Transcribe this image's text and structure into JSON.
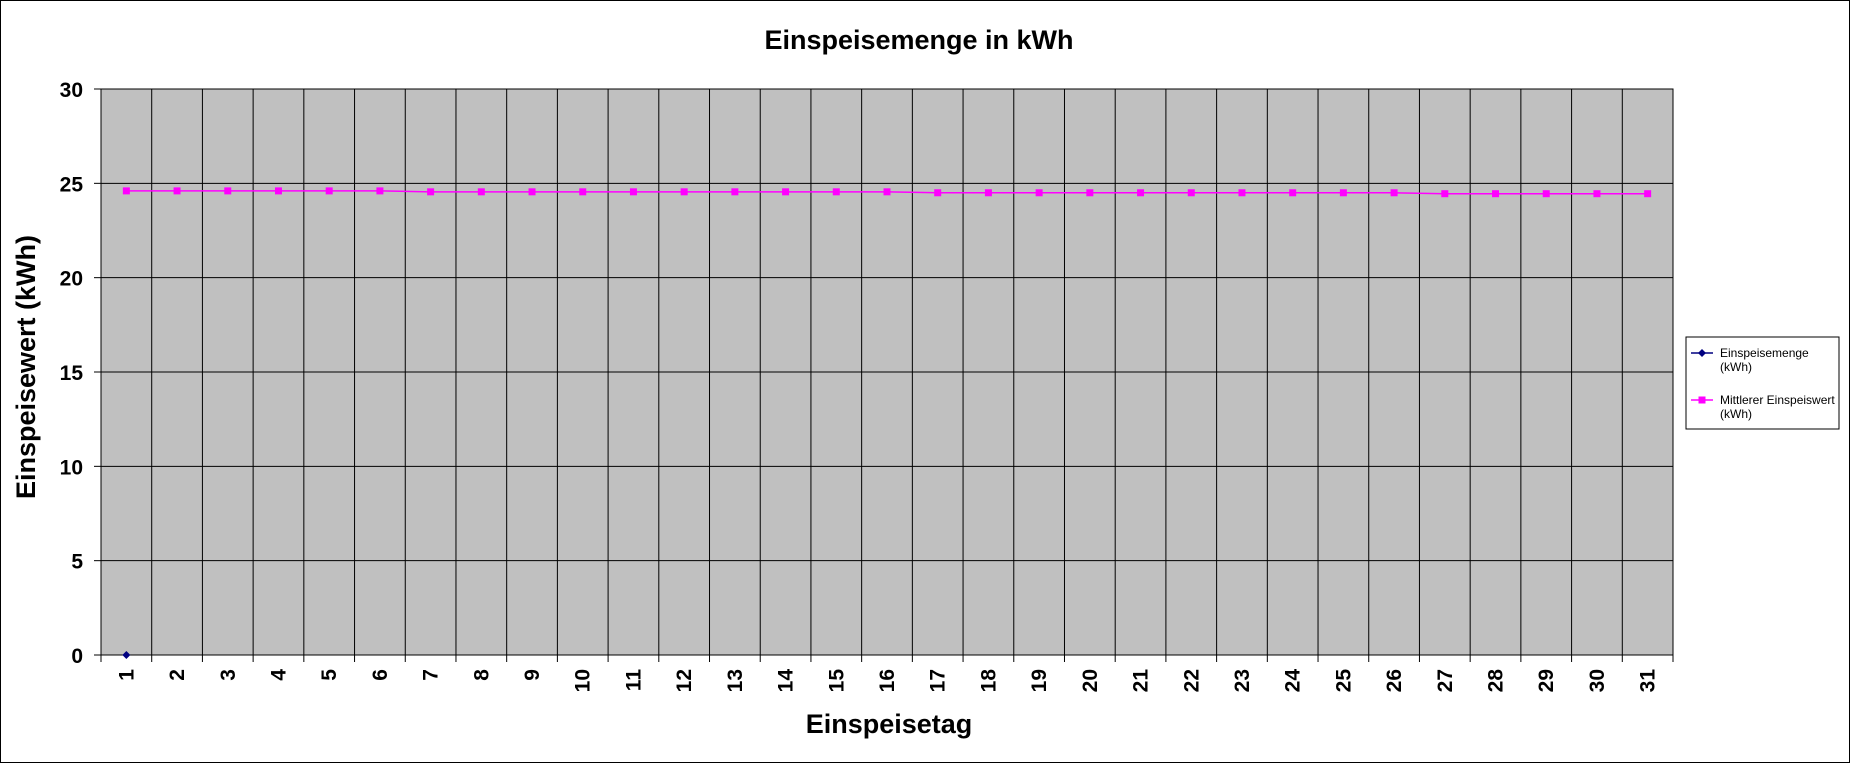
{
  "chart_data": {
    "type": "line",
    "title": "Einspeisemenge in kWh",
    "xlabel": "Einspeisetag",
    "ylabel": "Einspeisewert  (kWh)",
    "categories": [
      "1",
      "2",
      "3",
      "4",
      "5",
      "6",
      "7",
      "8",
      "9",
      "10",
      "11",
      "12",
      "13",
      "14",
      "15",
      "16",
      "17",
      "18",
      "19",
      "20",
      "21",
      "22",
      "23",
      "24",
      "25",
      "26",
      "27",
      "28",
      "29",
      "30",
      "31"
    ],
    "ylim": [
      0,
      30
    ],
    "yticks": [
      0,
      5,
      10,
      15,
      20,
      25,
      30
    ],
    "grid": true,
    "legend_position": "right",
    "series": [
      {
        "name": "Einspeisemenge\n(kWh)",
        "color": "#000080",
        "marker": "diamond",
        "values": [
          0,
          null,
          null,
          null,
          null,
          null,
          null,
          null,
          null,
          null,
          null,
          null,
          null,
          null,
          null,
          null,
          null,
          null,
          null,
          null,
          null,
          null,
          null,
          null,
          null,
          null,
          null,
          null,
          null,
          null,
          null
        ]
      },
      {
        "name": "Mittlerer Einspeiswert\n(kWh)",
        "color": "#FF00FF",
        "marker": "square",
        "values": [
          24.6,
          24.6,
          24.6,
          24.6,
          24.6,
          24.6,
          24.55,
          24.55,
          24.55,
          24.55,
          24.55,
          24.55,
          24.55,
          24.55,
          24.55,
          24.55,
          24.5,
          24.5,
          24.5,
          24.5,
          24.5,
          24.5,
          24.5,
          24.5,
          24.5,
          24.5,
          24.45,
          24.45,
          24.45,
          24.45,
          24.45
        ]
      }
    ]
  },
  "colors": {
    "plot_background": "#C0C0C0",
    "gridline": "#000000"
  }
}
